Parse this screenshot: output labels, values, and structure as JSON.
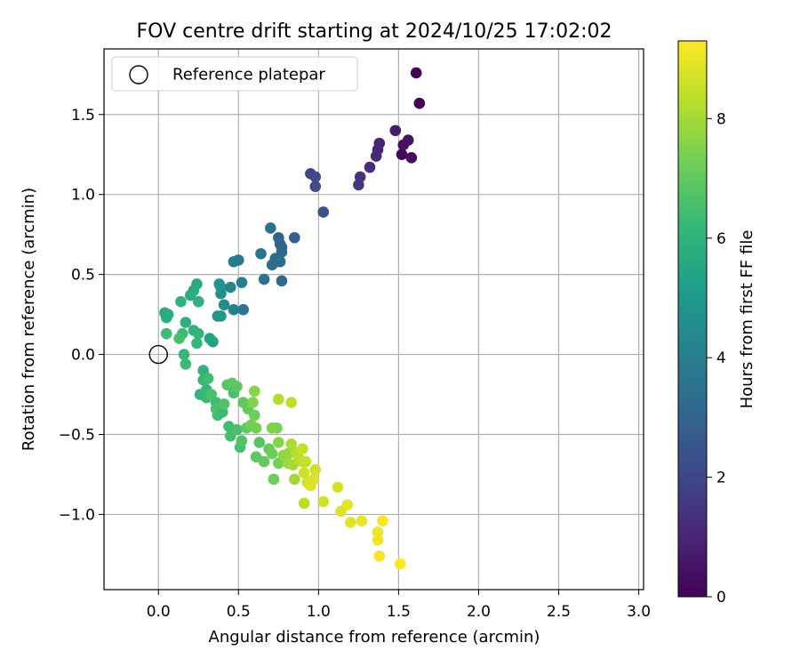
{
  "chart_data": {
    "type": "scatter",
    "title": "FOV centre drift starting at 2024/10/25 17:02:02",
    "xlabel": "Angular distance from reference (arcmin)",
    "ylabel": "Rotation from reference (arcmin)",
    "xlim": [
      -0.34,
      3.03
    ],
    "ylim": [
      -1.47,
      1.91
    ],
    "x_ticks": [
      0.0,
      0.5,
      1.0,
      1.5,
      2.0,
      2.5,
      3.0
    ],
    "x_tick_labels": [
      "0.0",
      "0.5",
      "1.0",
      "1.5",
      "2.0",
      "2.5",
      "3.0"
    ],
    "y_ticks": [
      -1.0,
      -0.5,
      0.0,
      0.5,
      1.0,
      1.5
    ],
    "y_tick_labels": [
      "−1.0",
      "−0.5",
      "0.0",
      "0.5",
      "1.0",
      "1.5"
    ],
    "grid": true,
    "legend": {
      "position": "top-left",
      "entries": [
        "Reference platepar"
      ]
    },
    "reference_point": {
      "x": 0.0,
      "y": 0.0
    },
    "colorbar": {
      "label": "Hours from first FF file",
      "colormap": "viridis",
      "min": 0,
      "max": 9.3,
      "ticks": [
        0,
        2,
        4,
        6,
        8
      ],
      "tick_labels": [
        "0",
        "2",
        "4",
        "6",
        "8"
      ]
    },
    "colormap_stops": [
      "#440154",
      "#482878",
      "#3e4989",
      "#31688e",
      "#26828e",
      "#1f9e89",
      "#35b779",
      "#6ece58",
      "#b5de2b",
      "#fde725"
    ],
    "series": [
      {
        "points": [
          [
            1.61,
            1.76,
            0.0
          ],
          [
            1.63,
            1.57,
            0.1
          ],
          [
            1.52,
            1.25,
            0.2
          ],
          [
            1.58,
            1.23,
            0.3
          ],
          [
            1.53,
            1.31,
            0.4
          ],
          [
            1.56,
            1.34,
            0.5
          ],
          [
            1.48,
            1.4,
            0.7
          ],
          [
            1.38,
            1.32,
            0.9
          ],
          [
            1.37,
            1.28,
            1.0
          ],
          [
            1.36,
            1.24,
            1.1
          ],
          [
            1.32,
            1.17,
            1.2
          ],
          [
            1.26,
            1.11,
            1.4
          ],
          [
            1.25,
            1.06,
            1.5
          ],
          [
            0.95,
            1.13,
            2.0
          ],
          [
            0.98,
            1.11,
            2.1
          ],
          [
            0.98,
            1.05,
            2.2
          ],
          [
            1.03,
            0.89,
            2.4
          ],
          [
            0.85,
            0.73,
            2.8
          ],
          [
            0.75,
            0.73,
            2.9
          ],
          [
            0.77,
            0.67,
            3.0
          ],
          [
            0.76,
            0.69,
            3.0
          ],
          [
            0.77,
            0.64,
            3.1
          ],
          [
            0.73,
            0.6,
            3.2
          ],
          [
            0.76,
            0.58,
            3.3
          ],
          [
            0.71,
            0.56,
            3.3
          ],
          [
            0.7,
            0.79,
            3.4
          ],
          [
            0.77,
            0.46,
            3.2
          ],
          [
            0.66,
            0.47,
            3.5
          ],
          [
            0.64,
            0.63,
            3.6
          ],
          [
            0.5,
            0.59,
            3.7
          ],
          [
            0.47,
            0.58,
            3.8
          ],
          [
            0.53,
            0.28,
            3.5
          ],
          [
            0.47,
            0.28,
            4.1
          ],
          [
            0.52,
            0.45,
            4.0
          ],
          [
            0.45,
            0.42,
            4.3
          ],
          [
            0.39,
            0.42,
            4.5
          ],
          [
            0.41,
            0.31,
            4.5
          ],
          [
            0.39,
            0.38,
            4.7
          ],
          [
            0.38,
            0.44,
            4.8
          ],
          [
            0.37,
            0.24,
            4.7
          ],
          [
            0.39,
            0.24,
            4.9
          ],
          [
            0.34,
            0.08,
            5.3
          ],
          [
            0.32,
            0.1,
            5.4
          ],
          [
            0.24,
            0.44,
            5.6
          ],
          [
            0.22,
            0.4,
            5.7
          ],
          [
            0.2,
            0.37,
            5.8
          ],
          [
            0.25,
            0.33,
            5.9
          ],
          [
            0.14,
            0.33,
            6.0
          ],
          [
            0.04,
            0.26,
            5.6
          ],
          [
            0.06,
            0.25,
            5.7
          ],
          [
            0.05,
            0.23,
            5.8
          ],
          [
            0.17,
            0.2,
            5.9
          ],
          [
            0.22,
            0.15,
            6.0
          ],
          [
            0.25,
            0.13,
            6.1
          ],
          [
            0.24,
            0.07,
            6.2
          ],
          [
            0.15,
            0.13,
            6.3
          ],
          [
            0.05,
            0.13,
            6.4
          ],
          [
            0.13,
            0.1,
            6.5
          ],
          [
            0.16,
            0.0,
            6.2
          ],
          [
            0.17,
            -0.06,
            6.3
          ],
          [
            0.28,
            -0.1,
            6.0
          ],
          [
            0.26,
            -0.25,
            6.1
          ],
          [
            0.28,
            -0.16,
            6.2
          ],
          [
            0.3,
            -0.22,
            6.2
          ],
          [
            0.31,
            -0.15,
            6.4
          ],
          [
            0.3,
            -0.27,
            6.3
          ],
          [
            0.33,
            -0.25,
            6.6
          ],
          [
            0.36,
            -0.3,
            6.4
          ],
          [
            0.37,
            -0.38,
            6.5
          ],
          [
            0.36,
            -0.34,
            6.6
          ],
          [
            0.4,
            -0.36,
            6.3
          ],
          [
            0.41,
            -0.31,
            6.7
          ],
          [
            0.43,
            -0.19,
            6.8
          ],
          [
            0.46,
            -0.18,
            6.9
          ],
          [
            0.47,
            -0.24,
            6.6
          ],
          [
            0.49,
            -0.2,
            6.9
          ],
          [
            0.44,
            -0.45,
            6.4
          ],
          [
            0.45,
            -0.51,
            6.5
          ],
          [
            0.49,
            -0.47,
            6.6
          ],
          [
            0.51,
            -0.58,
            6.5
          ],
          [
            0.52,
            -0.54,
            6.7
          ],
          [
            0.55,
            -0.46,
            7.0
          ],
          [
            0.53,
            -0.3,
            7.0
          ],
          [
            0.56,
            -0.34,
            7.1
          ],
          [
            0.6,
            -0.38,
            7.2
          ],
          [
            0.58,
            -0.44,
            7.3
          ],
          [
            0.61,
            -0.46,
            7.3
          ],
          [
            0.59,
            -0.3,
            7.5
          ],
          [
            0.6,
            -0.23,
            7.6
          ],
          [
            0.63,
            -0.55,
            6.8
          ],
          [
            0.61,
            -0.64,
            6.9
          ],
          [
            0.66,
            -0.67,
            7.0
          ],
          [
            0.69,
            -0.59,
            7.1
          ],
          [
            0.71,
            -0.62,
            7.2
          ],
          [
            0.72,
            -0.78,
            7.2
          ],
          [
            0.75,
            -0.68,
            7.3
          ],
          [
            0.74,
            -0.46,
            7.4
          ],
          [
            0.71,
            -0.46,
            7.5
          ],
          [
            0.75,
            -0.55,
            7.6
          ],
          [
            0.78,
            -0.63,
            7.7
          ],
          [
            0.81,
            -0.62,
            7.8
          ],
          [
            0.81,
            -0.68,
            7.9
          ],
          [
            0.84,
            -0.69,
            8.0
          ],
          [
            0.85,
            -0.78,
            8.0
          ],
          [
            0.83,
            -0.56,
            8.1
          ],
          [
            0.86,
            -0.61,
            8.2
          ],
          [
            0.87,
            -0.63,
            8.3
          ],
          [
            0.88,
            -0.66,
            8.3
          ],
          [
            0.9,
            -0.67,
            8.4
          ],
          [
            0.9,
            -0.59,
            8.5
          ],
          [
            0.92,
            -0.67,
            8.5
          ],
          [
            0.91,
            -0.74,
            8.6
          ],
          [
            0.93,
            -0.8,
            8.7
          ],
          [
            0.95,
            -0.82,
            8.8
          ],
          [
            0.97,
            -0.78,
            8.8
          ],
          [
            0.98,
            -0.72,
            8.7
          ],
          [
            0.91,
            -0.93,
            8.3
          ],
          [
            0.75,
            -0.28,
            8.2
          ],
          [
            0.83,
            -0.3,
            8.4
          ],
          [
            1.03,
            -0.92,
            8.6
          ],
          [
            1.12,
            -0.83,
            8.7
          ],
          [
            1.14,
            -0.98,
            8.8
          ],
          [
            1.18,
            -0.94,
            8.9
          ],
          [
            1.2,
            -1.05,
            8.9
          ],
          [
            1.27,
            -1.04,
            9.0
          ],
          [
            1.37,
            -1.11,
            9.1
          ],
          [
            1.37,
            -1.16,
            9.1
          ],
          [
            1.4,
            -1.04,
            9.2
          ],
          [
            1.38,
            -1.26,
            9.2
          ],
          [
            1.51,
            -1.31,
            9.3
          ]
        ]
      }
    ]
  }
}
